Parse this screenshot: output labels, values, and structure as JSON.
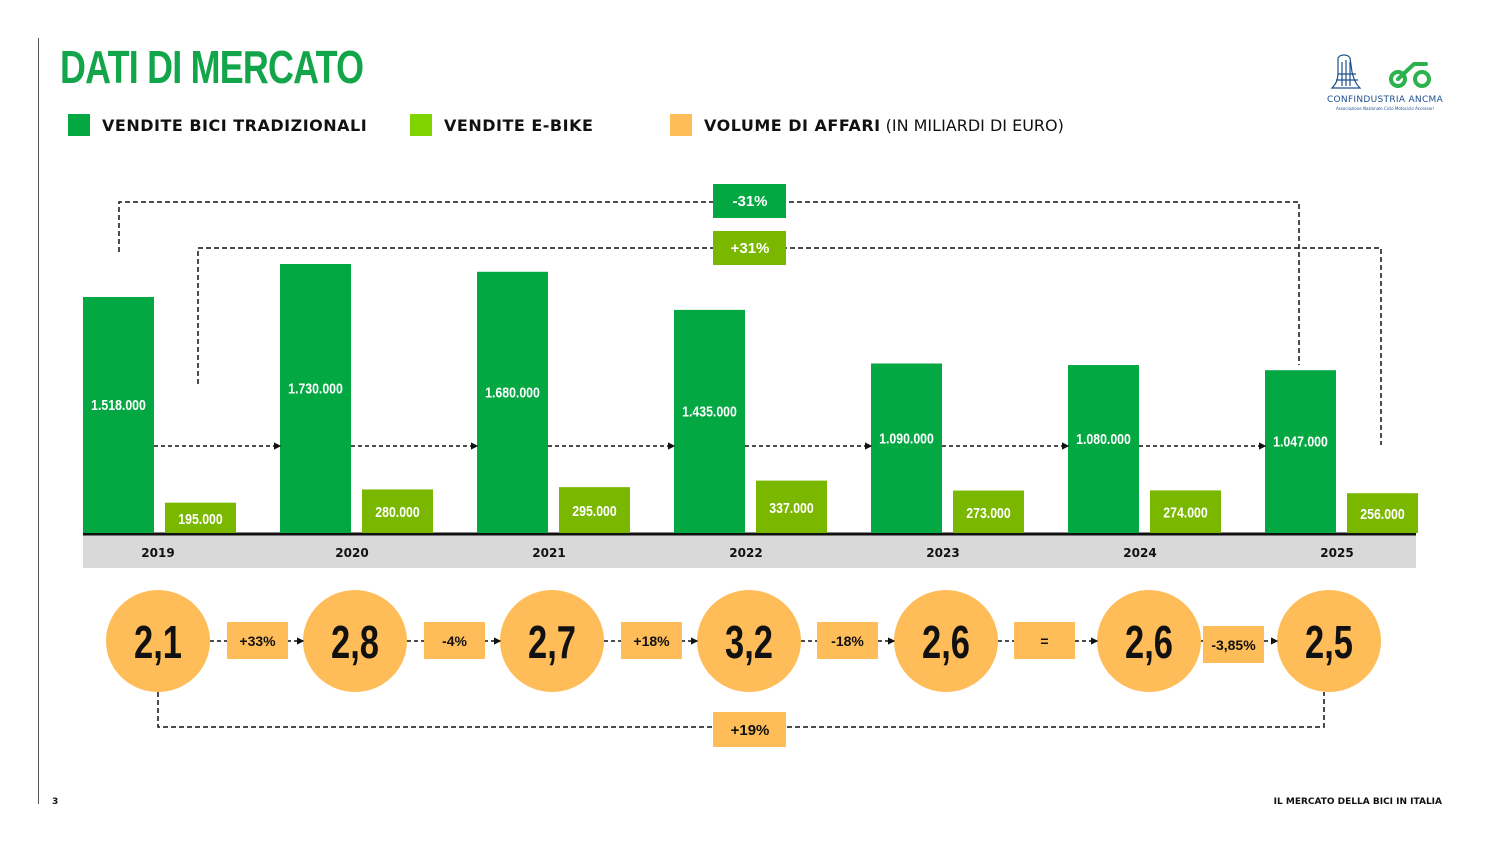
{
  "page": {
    "title": "DATI DI MERCATO",
    "page_number": "3",
    "footer_title": "IL MERCATO DELLA BICI IN ITALIA",
    "logo": {
      "name": "CONFINDUSTRIA ANCMA",
      "subtitle": "Associazione Nazionale Ciclo Motociclo Accessori",
      "icons": [
        "confindustria-eagle-icon",
        "ancma-bike-icon"
      ]
    }
  },
  "legend": [
    {
      "label": "VENDITE BICI TRADIZIONALI",
      "sub": "",
      "color": "#03a843"
    },
    {
      "label": "VENDITE E-BIKE",
      "sub": "",
      "color": "#7fd400"
    },
    {
      "label": "VOLUME DI AFFARI",
      "sub": "(IN MILIARDI DI EURO)",
      "color": "#ffbd59"
    }
  ],
  "colors": {
    "traditional": "#03a843",
    "ebike": "#7ab800",
    "volume": "#ffbd59",
    "axis_band": "#d9d9d9",
    "title": "#12a54a"
  },
  "chart_data": {
    "type": "bar",
    "title": "DATI DI MERCATO",
    "categories": [
      "2019",
      "2020",
      "2021",
      "2022",
      "2023",
      "2024",
      "2025"
    ],
    "series": [
      {
        "name": "VENDITE BICI TRADIZIONALI",
        "values": [
          1518000,
          1730000,
          1680000,
          1435000,
          1090000,
          1080000,
          1047000
        ],
        "labels": [
          "1.518.000",
          "1.730.000",
          "1.680.000",
          "1.435.000",
          "1.090.000",
          "1.080.000",
          "1.047.000"
        ]
      },
      {
        "name": "VENDITE E-BIKE",
        "values": [
          195000,
          280000,
          295000,
          337000,
          273000,
          274000,
          256000
        ],
        "labels": [
          "195.000",
          "280.000",
          "295.000",
          "337.000",
          "273.000",
          "274.000",
          "256.000"
        ]
      },
      {
        "name": "VOLUME DI AFFARI (IN MILIARDI DI EURO)",
        "values": [
          2.1,
          2.8,
          2.7,
          3.2,
          2.6,
          2.6,
          2.5
        ],
        "labels": [
          "2,1",
          "2,8",
          "2,7",
          "3,2",
          "2,6",
          "2,6",
          "2,5"
        ]
      }
    ],
    "volume_changes": [
      "+33%",
      "-4%",
      "+18%",
      "-18%",
      "=",
      "-3,85%"
    ],
    "annotations": [
      {
        "label": "-31%",
        "from": "2019",
        "to": "2025",
        "series": "VENDITE BICI TRADIZIONALI"
      },
      {
        "label": "+31%",
        "from": "2019",
        "to": "2025",
        "series": "VENDITE E-BIKE"
      },
      {
        "label": "+19%",
        "from": "2019",
        "to": "2025",
        "series": "VOLUME DI AFFARI (IN MILIARDI DI EURO)"
      }
    ],
    "xlabel": "",
    "ylabel": "",
    "ylim": [
      0,
      1900000
    ],
    "grid": false,
    "legend_position": "top-left"
  }
}
